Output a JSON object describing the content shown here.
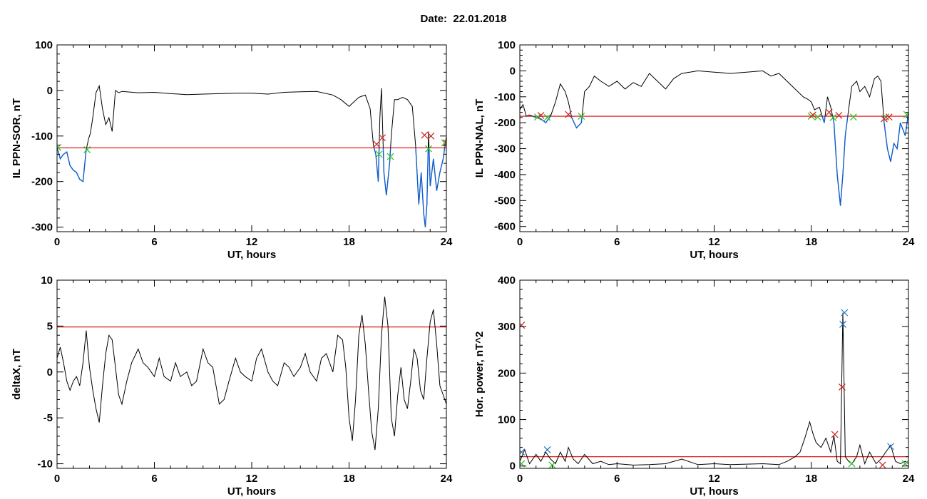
{
  "page": {
    "date_label": "Date:",
    "date_value": "22.01.2018"
  },
  "colors": {
    "curve": "#000000",
    "threshold": "#e00000",
    "below_threshold": "#1060d0",
    "marker_red": "#d02020",
    "marker_green": "#20c020",
    "marker_blue": "#2070c0"
  },
  "chart_data": [
    {
      "type": "line",
      "id": "sor",
      "xlabel": "UT, hours",
      "ylabel": "IL PPN-SOR, nT",
      "xlim": [
        0,
        24
      ],
      "ylim": [
        -310,
        100
      ],
      "xticks": [
        0,
        6,
        12,
        18,
        24
      ],
      "yticks": [
        -300,
        -200,
        -100,
        0,
        100
      ],
      "threshold": -126,
      "highlight_below_threshold": true,
      "series": [
        {
          "x": [
            0,
            0.2,
            0.4,
            0.6,
            0.8,
            1.0,
            1.2,
            1.4,
            1.6,
            1.8,
            1.95,
            2.05,
            2.2,
            2.4,
            2.6,
            2.8,
            3.0,
            3.2,
            3.4,
            3.6,
            3.8,
            4.0,
            5.0,
            6.0,
            7.0,
            8.0,
            9.0,
            10.0,
            11.0,
            12.0,
            13.0,
            14.0,
            15.0,
            16.0,
            17.0,
            17.5,
            18.0,
            18.3,
            18.6,
            19.0,
            19.3,
            19.5,
            19.65,
            19.8,
            19.9,
            20.0,
            20.15,
            20.3,
            20.5,
            20.6,
            20.8,
            21.0,
            21.3,
            21.6,
            21.9,
            22.1,
            22.3,
            22.45,
            22.6,
            22.7,
            22.8,
            22.9,
            23.0,
            23.2,
            23.4,
            23.6,
            23.8,
            24.0
          ],
          "y": [
            -125,
            -150,
            -140,
            -135,
            -165,
            -175,
            -180,
            -195,
            -200,
            -130,
            -105,
            -95,
            -60,
            -5,
            10,
            -40,
            -75,
            -60,
            -90,
            0,
            -5,
            -2,
            -5,
            -4,
            -7,
            -9,
            -8,
            -7,
            -6,
            -6,
            -8,
            -4,
            -3,
            -2,
            -10,
            -20,
            -35,
            -25,
            -15,
            -10,
            -40,
            -120,
            -140,
            -200,
            -60,
            5,
            -180,
            -230,
            -160,
            -100,
            -20,
            -20,
            -15,
            -20,
            -35,
            -120,
            -250,
            -180,
            -270,
            -300,
            -250,
            -90,
            -210,
            -150,
            -220,
            -180,
            -150,
            -100
          ]
        }
      ],
      "markers_red": [
        [
          19.7,
          -118
        ],
        [
          20.05,
          -104
        ],
        [
          22.65,
          -98
        ],
        [
          23.05,
          -100
        ],
        [
          24.0,
          -115
        ]
      ],
      "markers_green": [
        [
          0.05,
          -125
        ],
        [
          1.85,
          -130
        ],
        [
          19.85,
          -140
        ],
        [
          20.55,
          -145
        ],
        [
          22.9,
          -128
        ],
        [
          23.9,
          -115
        ]
      ]
    },
    {
      "type": "line",
      "id": "nal",
      "xlabel": "UT, hours",
      "ylabel": "IL PPN-NAL, nT",
      "xlim": [
        0,
        24
      ],
      "ylim": [
        -620,
        100
      ],
      "xticks": [
        0,
        6,
        12,
        18,
        24
      ],
      "yticks": [
        -600,
        -500,
        -400,
        -300,
        -200,
        -100,
        0,
        100
      ],
      "threshold": -175,
      "highlight_below_threshold": true,
      "series": [
        {
          "x": [
            0,
            0.2,
            0.4,
            0.6,
            0.8,
            1.0,
            1.3,
            1.6,
            1.9,
            2.2,
            2.5,
            2.8,
            3.0,
            3.2,
            3.5,
            3.8,
            4.0,
            4.3,
            4.6,
            5.0,
            5.5,
            6.0,
            6.5,
            7.0,
            7.5,
            8.0,
            8.5,
            9.0,
            9.5,
            10.0,
            10.5,
            11.0,
            12.0,
            13.0,
            14.0,
            15.0,
            15.5,
            16.0,
            16.5,
            17.0,
            17.5,
            17.8,
            18.0,
            18.2,
            18.5,
            18.8,
            19.0,
            19.2,
            19.4,
            19.6,
            19.8,
            19.95,
            20.1,
            20.3,
            20.5,
            20.8,
            21.0,
            21.3,
            21.6,
            21.9,
            22.1,
            22.3,
            22.5,
            22.7,
            22.9,
            23.1,
            23.3,
            23.5,
            23.8,
            24.0
          ],
          "y": [
            -150,
            -130,
            -175,
            -170,
            -175,
            -180,
            -185,
            -200,
            -175,
            -120,
            -50,
            -80,
            -120,
            -180,
            -220,
            -200,
            -80,
            -60,
            -20,
            -40,
            -60,
            -40,
            -70,
            -45,
            -60,
            -10,
            -40,
            -70,
            -30,
            -10,
            -5,
            0,
            -5,
            -10,
            -5,
            0,
            -20,
            -10,
            -40,
            -70,
            -100,
            -110,
            -120,
            -150,
            -140,
            -200,
            -100,
            -140,
            -200,
            -400,
            -520,
            -400,
            -250,
            -150,
            -60,
            -40,
            -80,
            -60,
            -100,
            -30,
            -20,
            -40,
            -200,
            -300,
            -350,
            -280,
            -300,
            -200,
            -250,
            -160
          ]
        }
      ],
      "markers_red": [
        [
          1.3,
          -172
        ],
        [
          3.0,
          -168
        ],
        [
          18.1,
          -170
        ],
        [
          19.1,
          -160
        ],
        [
          19.7,
          -172
        ],
        [
          22.5,
          -185
        ],
        [
          22.8,
          -178
        ]
      ],
      "markers_green": [
        [
          1.1,
          -178
        ],
        [
          1.7,
          -180
        ],
        [
          3.8,
          -175
        ],
        [
          18.0,
          -175
        ],
        [
          18.4,
          -178
        ],
        [
          19.35,
          -180
        ],
        [
          20.6,
          -178
        ],
        [
          22.6,
          -178
        ],
        [
          23.9,
          -168
        ]
      ]
    },
    {
      "type": "line",
      "id": "deltax",
      "xlabel": "UT, hours",
      "ylabel": "deltaX, nT",
      "xlim": [
        0,
        24
      ],
      "ylim": [
        -10.5,
        10
      ],
      "xticks": [
        0,
        6,
        12,
        18,
        24
      ],
      "yticks": [
        -10,
        -5,
        0,
        5,
        10
      ],
      "threshold": 4.9,
      "highlight_below_threshold": false,
      "series": [
        {
          "x": [
            0,
            0.2,
            0.4,
            0.6,
            0.8,
            1.0,
            1.2,
            1.4,
            1.6,
            1.8,
            2.0,
            2.2,
            2.4,
            2.6,
            2.8,
            3.0,
            3.2,
            3.4,
            3.6,
            3.8,
            4.0,
            4.3,
            4.6,
            5.0,
            5.3,
            5.6,
            6.0,
            6.3,
            6.6,
            7.0,
            7.3,
            7.6,
            8.0,
            8.3,
            8.6,
            9.0,
            9.3,
            9.6,
            10.0,
            10.3,
            10.6,
            11.0,
            11.3,
            11.6,
            12.0,
            12.3,
            12.6,
            13.0,
            13.3,
            13.6,
            14.0,
            14.3,
            14.6,
            15.0,
            15.3,
            15.6,
            16.0,
            16.3,
            16.6,
            17.0,
            17.3,
            17.6,
            17.8,
            18.0,
            18.2,
            18.4,
            18.6,
            18.8,
            19.0,
            19.2,
            19.4,
            19.6,
            19.8,
            20.0,
            20.2,
            20.4,
            20.6,
            20.8,
            21.0,
            21.2,
            21.4,
            21.6,
            21.8,
            22.0,
            22.2,
            22.4,
            22.6,
            22.8,
            23.0,
            23.2,
            23.4,
            23.6,
            23.8,
            24.0
          ],
          "y": [
            1.5,
            2.7,
            1.0,
            -1.0,
            -2.0,
            -1.0,
            -0.5,
            -1.5,
            1.0,
            4.5,
            0.5,
            -2.0,
            -4.0,
            -5.5,
            -1.5,
            2.0,
            4.0,
            3.5,
            0.5,
            -2.5,
            -3.5,
            -1.0,
            1.0,
            2.5,
            1.0,
            0.5,
            -0.5,
            1.5,
            -0.5,
            -1.0,
            1.0,
            -0.5,
            0.0,
            -1.5,
            -1.0,
            2.5,
            1.0,
            0.5,
            -3.5,
            -3.0,
            -1.0,
            1.5,
            0.0,
            -0.5,
            -1.0,
            1.5,
            2.5,
            0.0,
            -1.0,
            -1.5,
            1.0,
            0.5,
            -0.5,
            0.5,
            2.0,
            0.0,
            -1.0,
            1.5,
            2.0,
            0.0,
            4.0,
            3.5,
            0.5,
            -5.0,
            -7.5,
            -3.0,
            4.0,
            6.2,
            3.0,
            -2.0,
            -6.5,
            -8.5,
            -4.0,
            4.0,
            8.2,
            5.0,
            -5.0,
            -7.0,
            -2.5,
            0.5,
            -3.0,
            -4.0,
            -1.0,
            2.5,
            1.5,
            -2.0,
            -3.0,
            1.5,
            5.5,
            6.8,
            3.0,
            -1.5,
            -2.5,
            -3.5
          ]
        }
      ],
      "markers_red": [],
      "markers_green": []
    },
    {
      "type": "line",
      "id": "power",
      "xlabel": "UT, hours",
      "ylabel": "Hor. power, nT^2",
      "xlim": [
        0,
        24
      ],
      "ylim": [
        -5,
        400
      ],
      "xticks": [
        0,
        6,
        12,
        18,
        24
      ],
      "yticks": [
        0,
        100,
        200,
        300,
        400
      ],
      "threshold": 20,
      "highlight_below_threshold": false,
      "series": [
        {
          "x": [
            0,
            0.3,
            0.6,
            1.0,
            1.3,
            1.6,
            1.9,
            2.2,
            2.5,
            2.8,
            3.0,
            3.3,
            3.6,
            4.0,
            4.5,
            5.0,
            5.5,
            6.0,
            7.0,
            8.0,
            9.0,
            10.0,
            11.0,
            12.0,
            13.0,
            14.0,
            15.0,
            16.0,
            16.5,
            17.0,
            17.3,
            17.6,
            17.9,
            18.1,
            18.3,
            18.6,
            18.9,
            19.2,
            19.4,
            19.6,
            19.8,
            19.95,
            20.1,
            20.3,
            20.5,
            20.8,
            21.0,
            21.3,
            21.6,
            22.0,
            22.3,
            22.6,
            22.9,
            23.2,
            23.5,
            23.8,
            24.0
          ],
          "y": [
            10,
            35,
            5,
            25,
            10,
            30,
            15,
            5,
            30,
            10,
            40,
            15,
            5,
            25,
            5,
            10,
            3,
            5,
            2,
            3,
            5,
            15,
            3,
            5,
            3,
            4,
            5,
            3,
            10,
            20,
            30,
            60,
            95,
            70,
            50,
            40,
            60,
            30,
            65,
            10,
            5,
            330,
            20,
            10,
            5,
            20,
            45,
            5,
            30,
            5,
            15,
            30,
            45,
            10,
            5,
            10,
            5
          ]
        }
      ],
      "markers_red": [
        [
          0.1,
          303
        ],
        [
          19.45,
          68
        ],
        [
          19.9,
          170
        ],
        [
          22.4,
          2
        ]
      ],
      "markers_green": [
        [
          0.1,
          5
        ],
        [
          2.0,
          2
        ],
        [
          20.5,
          5
        ],
        [
          23.8,
          5
        ]
      ],
      "markers_blue": [
        [
          0.1,
          30
        ],
        [
          1.7,
          35
        ],
        [
          19.95,
          305
        ],
        [
          20.05,
          330
        ],
        [
          22.9,
          42
        ]
      ]
    }
  ]
}
